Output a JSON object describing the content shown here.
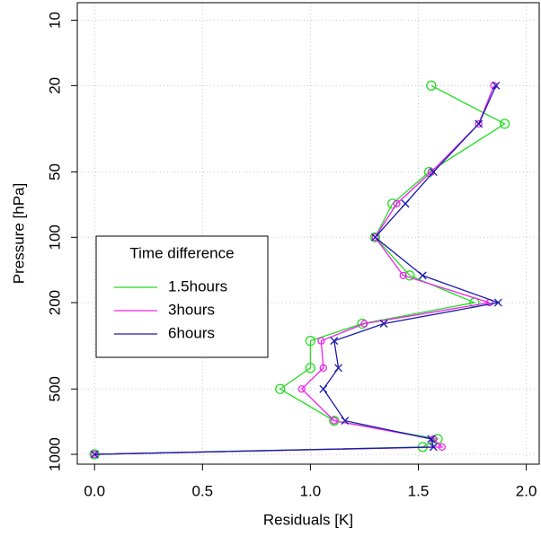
{
  "chart_data": {
    "type": "line",
    "x_label": "Residuals [K]",
    "y_label": "Pressure [hPa]",
    "y": [
      20,
      30,
      50,
      70,
      100,
      150,
      200,
      250,
      300,
      400,
      500,
      700,
      850,
      925,
      1000
    ],
    "series": [
      {
        "name": "1.5hours",
        "color": "#22dd22",
        "marker": "circle-large",
        "values": [
          1.56,
          1.9,
          1.55,
          1.38,
          1.3,
          1.46,
          1.76,
          1.24,
          1.0,
          1.0,
          0.86,
          1.11,
          1.59,
          1.52,
          0.0
        ]
      },
      {
        "name": "3hours",
        "color": "#ee22ee",
        "marker": "circle-small",
        "values": [
          1.85,
          1.78,
          1.56,
          1.4,
          1.3,
          1.43,
          1.83,
          1.25,
          1.05,
          1.06,
          0.96,
          1.11,
          1.57,
          1.61,
          0.0
        ]
      },
      {
        "name": "6hours",
        "color": "#1a1aaa",
        "marker": "x",
        "values": [
          1.86,
          1.78,
          1.57,
          1.44,
          1.3,
          1.52,
          1.87,
          1.34,
          1.11,
          1.13,
          1.06,
          1.16,
          1.56,
          1.57,
          0.0
        ]
      }
    ],
    "xlim": [
      -0.08,
      2.06
    ],
    "xticks": [
      {
        "value": 0,
        "label": "0.0"
      },
      0.5,
      {
        "value": 1,
        "label": "1.0"
      },
      1.5,
      {
        "value": 2,
        "label": "2.0"
      }
    ],
    "ylim": [
      1110,
      8.3
    ],
    "ylog": true,
    "yticks": [
      10,
      20,
      50,
      100,
      200,
      500,
      1000
    ],
    "grid": true,
    "legend_title": "Time difference",
    "legend_position": "center-left"
  }
}
